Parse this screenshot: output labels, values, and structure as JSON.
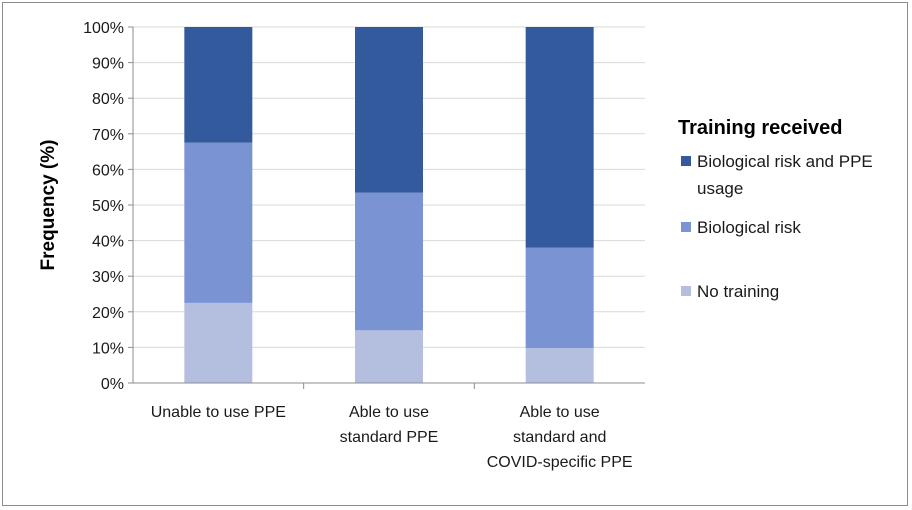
{
  "chart_data": {
    "type": "bar",
    "stacked": true,
    "categories": [
      [
        "Unable to use PPE"
      ],
      [
        "Able to use",
        "standard PPE"
      ],
      [
        "Able to use",
        "standard and",
        "COVID-specific PPE"
      ]
    ],
    "series": [
      {
        "name": "No training",
        "color": "#b4bfe0",
        "values": [
          22.5,
          14.8,
          9.8
        ]
      },
      {
        "name": "Biological risk",
        "color": "#7a93d2",
        "values": [
          45,
          38.7,
          28.2
        ]
      },
      {
        "name": "Biological risk and PPE usage",
        "color": "#325a9c",
        "values": [
          32.5,
          46.5,
          62
        ]
      }
    ],
    "legend_order": [
      2,
      1,
      0
    ],
    "legend_title": "Training received",
    "legend_lines": [
      [
        "Biological risk and PPE",
        "usage"
      ],
      [
        "Biological risk"
      ],
      [
        "No training"
      ]
    ],
    "ylabel": "Frequency (%)",
    "xlabel": "",
    "ylim": [
      0,
      100
    ],
    "yticks": [
      "0%",
      "10%",
      "20%",
      "30%",
      "40%",
      "50%",
      "60%",
      "70%",
      "80%",
      "90%",
      "100%"
    ],
    "grid": true,
    "legend_position": "right"
  }
}
